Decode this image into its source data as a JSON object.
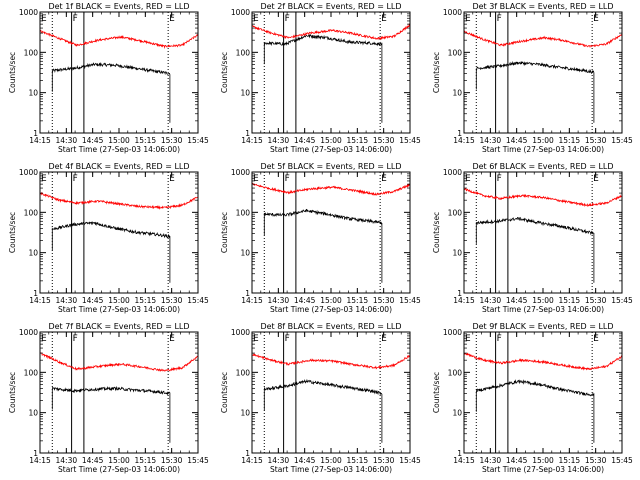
{
  "figure_colors": {
    "events": "#000000",
    "lld": "#ff0000",
    "markers": "#000000"
  },
  "chart_data": [
    {
      "type": "line",
      "title": "Det 1f BLACK = Events, RED = LLD",
      "xlabel": "Start Time (27-Sep-03 14:06:00)",
      "ylabel": "Counts/sec",
      "yscale": "log",
      "ylim": [
        1,
        1000
      ],
      "xlim_min": [
        9,
        99
      ],
      "x_ticks": [
        "14:15",
        "14:30",
        "14:45",
        "15:00",
        "15:15",
        "15:30",
        "15:45"
      ],
      "y_ticks": [
        "1",
        "10",
        "100",
        "1000"
      ],
      "markers": [
        {
          "label": "E",
          "x_min": 9,
          "style": "label"
        },
        {
          "label": "",
          "x_min": 16,
          "style": "dotted"
        },
        {
          "label": "F",
          "x_min": 27,
          "style": "solid"
        },
        {
          "label": "",
          "x_min": 34,
          "style": "solid"
        },
        {
          "label": "E",
          "x_min": 82,
          "style": "dotted"
        }
      ],
      "series": [
        {
          "name": "Events",
          "color": "#000000",
          "x_range_min": [
            16,
            83
          ],
          "points_min": [
            16,
            28,
            40,
            52,
            64,
            76,
            83
          ],
          "values": [
            35,
            40,
            50,
            48,
            40,
            33,
            30
          ]
        },
        {
          "name": "LLD",
          "color": "#ff0000",
          "x_range_min": [
            9,
            99
          ],
          "points_min": [
            9,
            20,
            30,
            42,
            55,
            65,
            80,
            90,
            99
          ],
          "values": [
            340,
            220,
            150,
            200,
            240,
            200,
            140,
            150,
            270
          ]
        }
      ]
    },
    {
      "type": "line",
      "title": "Det 2f BLACK = Events, RED = LLD",
      "xlabel": "Start Time (27-Sep-03 14:06:00)",
      "ylabel": "Counts/sec",
      "yscale": "log",
      "ylim": [
        1,
        1000
      ],
      "xlim_min": [
        9,
        99
      ],
      "x_ticks": [
        "14:15",
        "14:30",
        "14:45",
        "15:00",
        "15:15",
        "15:30",
        "15:45"
      ],
      "y_ticks": [
        "1",
        "10",
        "100",
        "1000"
      ],
      "markers": [
        {
          "label": "E",
          "x_min": 9,
          "style": "label"
        },
        {
          "label": "",
          "x_min": 16,
          "style": "dotted"
        },
        {
          "label": "F",
          "x_min": 27,
          "style": "solid"
        },
        {
          "label": "",
          "x_min": 34,
          "style": "solid"
        },
        {
          "label": "E",
          "x_min": 82,
          "style": "dotted"
        }
      ],
      "series": [
        {
          "name": "Events",
          "color": "#000000",
          "x_range_min": [
            16,
            83
          ],
          "points_min": [
            16,
            28,
            40,
            52,
            64,
            76,
            83
          ],
          "values": [
            170,
            160,
            260,
            230,
            180,
            170,
            160
          ]
        },
        {
          "name": "LLD",
          "color": "#ff0000",
          "x_range_min": [
            9,
            99
          ],
          "points_min": [
            9,
            20,
            30,
            42,
            55,
            65,
            80,
            90,
            99
          ],
          "values": [
            440,
            300,
            230,
            300,
            350,
            300,
            220,
            250,
            480
          ]
        }
      ]
    },
    {
      "type": "line",
      "title": "Det 3f BLACK = Events, RED = LLD",
      "xlabel": "Start Time (27-Sep-03 14:06:00)",
      "ylabel": "Counts/sec",
      "yscale": "log",
      "ylim": [
        1,
        1000
      ],
      "xlim_min": [
        9,
        99
      ],
      "x_ticks": [
        "14:15",
        "14:30",
        "14:45",
        "15:00",
        "15:15",
        "15:30",
        "15:45"
      ],
      "y_ticks": [
        "1",
        "10",
        "100",
        "1000"
      ],
      "markers": [
        {
          "label": "E",
          "x_min": 9,
          "style": "label"
        },
        {
          "label": "",
          "x_min": 16,
          "style": "dotted"
        },
        {
          "label": "F",
          "x_min": 27,
          "style": "solid"
        },
        {
          "label": "",
          "x_min": 34,
          "style": "solid"
        },
        {
          "label": "E",
          "x_min": 82,
          "style": "dotted"
        }
      ],
      "series": [
        {
          "name": "Events",
          "color": "#000000",
          "x_range_min": [
            16,
            83
          ],
          "points_min": [
            16,
            28,
            40,
            52,
            64,
            76,
            83
          ],
          "values": [
            40,
            45,
            55,
            50,
            42,
            36,
            32
          ]
        },
        {
          "name": "LLD",
          "color": "#ff0000",
          "x_range_min": [
            9,
            99
          ],
          "points_min": [
            9,
            20,
            30,
            42,
            55,
            65,
            80,
            90,
            99
          ],
          "values": [
            330,
            210,
            150,
            190,
            230,
            200,
            140,
            160,
            280
          ]
        }
      ]
    },
    {
      "type": "line",
      "title": "Det 4f BLACK = Events, RED = LLD",
      "xlabel": "Start Time (27-Sep-03 14:06:00)",
      "ylabel": "Counts/sec",
      "yscale": "log",
      "ylim": [
        1,
        1000
      ],
      "xlim_min": [
        9,
        99
      ],
      "x_ticks": [
        "14:15",
        "14:30",
        "14:45",
        "15:00",
        "15:15",
        "15:30",
        "15:45"
      ],
      "y_ticks": [
        "1",
        "10",
        "100",
        "1000"
      ],
      "markers": [
        {
          "label": "E",
          "x_min": 9,
          "style": "label"
        },
        {
          "label": "",
          "x_min": 16,
          "style": "dotted"
        },
        {
          "label": "F",
          "x_min": 27,
          "style": "solid"
        },
        {
          "label": "",
          "x_min": 34,
          "style": "solid"
        },
        {
          "label": "E",
          "x_min": 82,
          "style": "dotted"
        }
      ],
      "series": [
        {
          "name": "Events",
          "color": "#000000",
          "x_range_min": [
            16,
            83
          ],
          "points_min": [
            16,
            28,
            40,
            52,
            64,
            76,
            83
          ],
          "values": [
            38,
            50,
            55,
            40,
            32,
            28,
            25
          ]
        },
        {
          "name": "LLD",
          "color": "#ff0000",
          "x_range_min": [
            9,
            99
          ],
          "points_min": [
            9,
            20,
            30,
            42,
            55,
            65,
            80,
            90,
            99
          ],
          "values": [
            300,
            200,
            170,
            190,
            160,
            140,
            130,
            150,
            240
          ]
        }
      ]
    },
    {
      "type": "line",
      "title": "Det 5f BLACK = Events, RED = LLD",
      "xlabel": "Start Time (27-Sep-03 14:06:00)",
      "ylabel": "Counts/sec",
      "yscale": "log",
      "ylim": [
        1,
        1000
      ],
      "xlim_min": [
        9,
        99
      ],
      "x_ticks": [
        "14:15",
        "14:30",
        "14:45",
        "15:00",
        "15:15",
        "15:30",
        "15:45"
      ],
      "y_ticks": [
        "1",
        "10",
        "100",
        "1000"
      ],
      "markers": [
        {
          "label": "E",
          "x_min": 9,
          "style": "label"
        },
        {
          "label": "",
          "x_min": 16,
          "style": "dotted"
        },
        {
          "label": "F",
          "x_min": 27,
          "style": "solid"
        },
        {
          "label": "",
          "x_min": 34,
          "style": "solid"
        },
        {
          "label": "E",
          "x_min": 82,
          "style": "dotted"
        }
      ],
      "series": [
        {
          "name": "Events",
          "color": "#000000",
          "x_range_min": [
            16,
            83
          ],
          "points_min": [
            16,
            28,
            40,
            52,
            64,
            76,
            83
          ],
          "values": [
            90,
            85,
            110,
            90,
            70,
            60,
            55
          ]
        },
        {
          "name": "LLD",
          "color": "#ff0000",
          "x_range_min": [
            9,
            99
          ],
          "points_min": [
            9,
            20,
            30,
            42,
            55,
            65,
            80,
            90,
            99
          ],
          "values": [
            500,
            380,
            310,
            380,
            420,
            360,
            280,
            330,
            480
          ]
        }
      ]
    },
    {
      "type": "line",
      "title": "Det 6f BLACK = Events, RED = LLD",
      "xlabel": "Start Time (27-Sep-03 14:06:00)",
      "ylabel": "Counts/sec",
      "yscale": "log",
      "ylim": [
        1,
        1000
      ],
      "xlim_min": [
        9,
        99
      ],
      "x_ticks": [
        "14:15",
        "14:30",
        "14:45",
        "15:00",
        "15:15",
        "15:30",
        "15:45"
      ],
      "y_ticks": [
        "1",
        "10",
        "100",
        "1000"
      ],
      "markers": [
        {
          "label": "E",
          "x_min": 9,
          "style": "label"
        },
        {
          "label": "",
          "x_min": 16,
          "style": "dotted"
        },
        {
          "label": "F",
          "x_min": 27,
          "style": "solid"
        },
        {
          "label": "",
          "x_min": 34,
          "style": "solid"
        },
        {
          "label": "E",
          "x_min": 82,
          "style": "dotted"
        }
      ],
      "series": [
        {
          "name": "Events",
          "color": "#000000",
          "x_range_min": [
            16,
            83
          ],
          "points_min": [
            16,
            28,
            40,
            52,
            64,
            76,
            83
          ],
          "values": [
            55,
            60,
            70,
            55,
            45,
            35,
            30
          ]
        },
        {
          "name": "LLD",
          "color": "#ff0000",
          "x_range_min": [
            9,
            99
          ],
          "points_min": [
            9,
            20,
            30,
            42,
            55,
            65,
            80,
            90,
            99
          ],
          "values": [
            380,
            260,
            220,
            260,
            230,
            190,
            150,
            170,
            260
          ]
        }
      ]
    },
    {
      "type": "line",
      "title": "Det 7f BLACK = Events, RED = LLD",
      "xlabel": "Start Time (27-Sep-03 14:06:00)",
      "ylabel": "Counts/sec",
      "yscale": "log",
      "ylim": [
        1,
        1000
      ],
      "xlim_min": [
        9,
        99
      ],
      "x_ticks": [
        "14:15",
        "14:30",
        "14:45",
        "15:00",
        "15:15",
        "15:30",
        "15:45"
      ],
      "y_ticks": [
        "1",
        "10",
        "100",
        "1000"
      ],
      "markers": [
        {
          "label": "E",
          "x_min": 9,
          "style": "label"
        },
        {
          "label": "",
          "x_min": 16,
          "style": "dotted"
        },
        {
          "label": "F",
          "x_min": 27,
          "style": "solid"
        },
        {
          "label": "",
          "x_min": 34,
          "style": "solid"
        },
        {
          "label": "E",
          "x_min": 82,
          "style": "dotted"
        }
      ],
      "series": [
        {
          "name": "Events",
          "color": "#000000",
          "x_range_min": [
            16,
            83
          ],
          "points_min": [
            16,
            28,
            40,
            52,
            64,
            76,
            83
          ],
          "values": [
            40,
            35,
            38,
            40,
            36,
            33,
            30
          ]
        },
        {
          "name": "LLD",
          "color": "#ff0000",
          "x_range_min": [
            9,
            99
          ],
          "points_min": [
            9,
            20,
            30,
            42,
            55,
            65,
            80,
            90,
            99
          ],
          "values": [
            300,
            180,
            120,
            140,
            160,
            140,
            110,
            130,
            250
          ]
        }
      ]
    },
    {
      "type": "line",
      "title": "Det 8f BLACK = Events, RED = LLD",
      "xlabel": "Start Time (27-Sep-03 14:06:00)",
      "ylabel": "Counts/sec",
      "yscale": "log",
      "ylim": [
        1,
        1000
      ],
      "xlim_min": [
        9,
        99
      ],
      "x_ticks": [
        "14:15",
        "14:30",
        "14:45",
        "15:00",
        "15:15",
        "15:30",
        "15:45"
      ],
      "y_ticks": [
        "1",
        "10",
        "100",
        "1000"
      ],
      "markers": [
        {
          "label": "E",
          "x_min": 9,
          "style": "label"
        },
        {
          "label": "",
          "x_min": 16,
          "style": "dotted"
        },
        {
          "label": "F",
          "x_min": 27,
          "style": "solid"
        },
        {
          "label": "",
          "x_min": 34,
          "style": "solid"
        },
        {
          "label": "E",
          "x_min": 82,
          "style": "dotted"
        }
      ],
      "series": [
        {
          "name": "Events",
          "color": "#000000",
          "x_range_min": [
            16,
            83
          ],
          "points_min": [
            16,
            28,
            40,
            52,
            64,
            76,
            83
          ],
          "values": [
            38,
            45,
            60,
            50,
            42,
            35,
            30
          ]
        },
        {
          "name": "LLD",
          "color": "#ff0000",
          "x_range_min": [
            9,
            99
          ],
          "points_min": [
            9,
            20,
            30,
            42,
            55,
            65,
            80,
            90,
            99
          ],
          "values": [
            280,
            200,
            160,
            200,
            190,
            160,
            130,
            150,
            260
          ]
        }
      ]
    },
    {
      "type": "line",
      "title": "Det 9f BLACK = Events, RED = LLD",
      "xlabel": "Start Time (27-Sep-03 14:06:00)",
      "ylabel": "Counts/sec",
      "yscale": "log",
      "ylim": [
        1,
        1000
      ],
      "xlim_min": [
        9,
        99
      ],
      "x_ticks": [
        "14:15",
        "14:30",
        "14:45",
        "15:00",
        "15:15",
        "15:30",
        "15:45"
      ],
      "y_ticks": [
        "1",
        "10",
        "100",
        "1000"
      ],
      "markers": [
        {
          "label": "E",
          "x_min": 9,
          "style": "label"
        },
        {
          "label": "",
          "x_min": 16,
          "style": "dotted"
        },
        {
          "label": "F",
          "x_min": 27,
          "style": "solid"
        },
        {
          "label": "",
          "x_min": 34,
          "style": "solid"
        },
        {
          "label": "E",
          "x_min": 82,
          "style": "dotted"
        }
      ],
      "series": [
        {
          "name": "Events",
          "color": "#000000",
          "x_range_min": [
            16,
            83
          ],
          "points_min": [
            16,
            28,
            40,
            52,
            64,
            76,
            83
          ],
          "values": [
            35,
            45,
            60,
            50,
            38,
            30,
            28
          ]
        },
        {
          "name": "LLD",
          "color": "#ff0000",
          "x_range_min": [
            9,
            99
          ],
          "points_min": [
            9,
            20,
            30,
            42,
            55,
            65,
            80,
            90,
            99
          ],
          "values": [
            300,
            200,
            170,
            200,
            180,
            150,
            120,
            140,
            250
          ]
        }
      ]
    }
  ]
}
